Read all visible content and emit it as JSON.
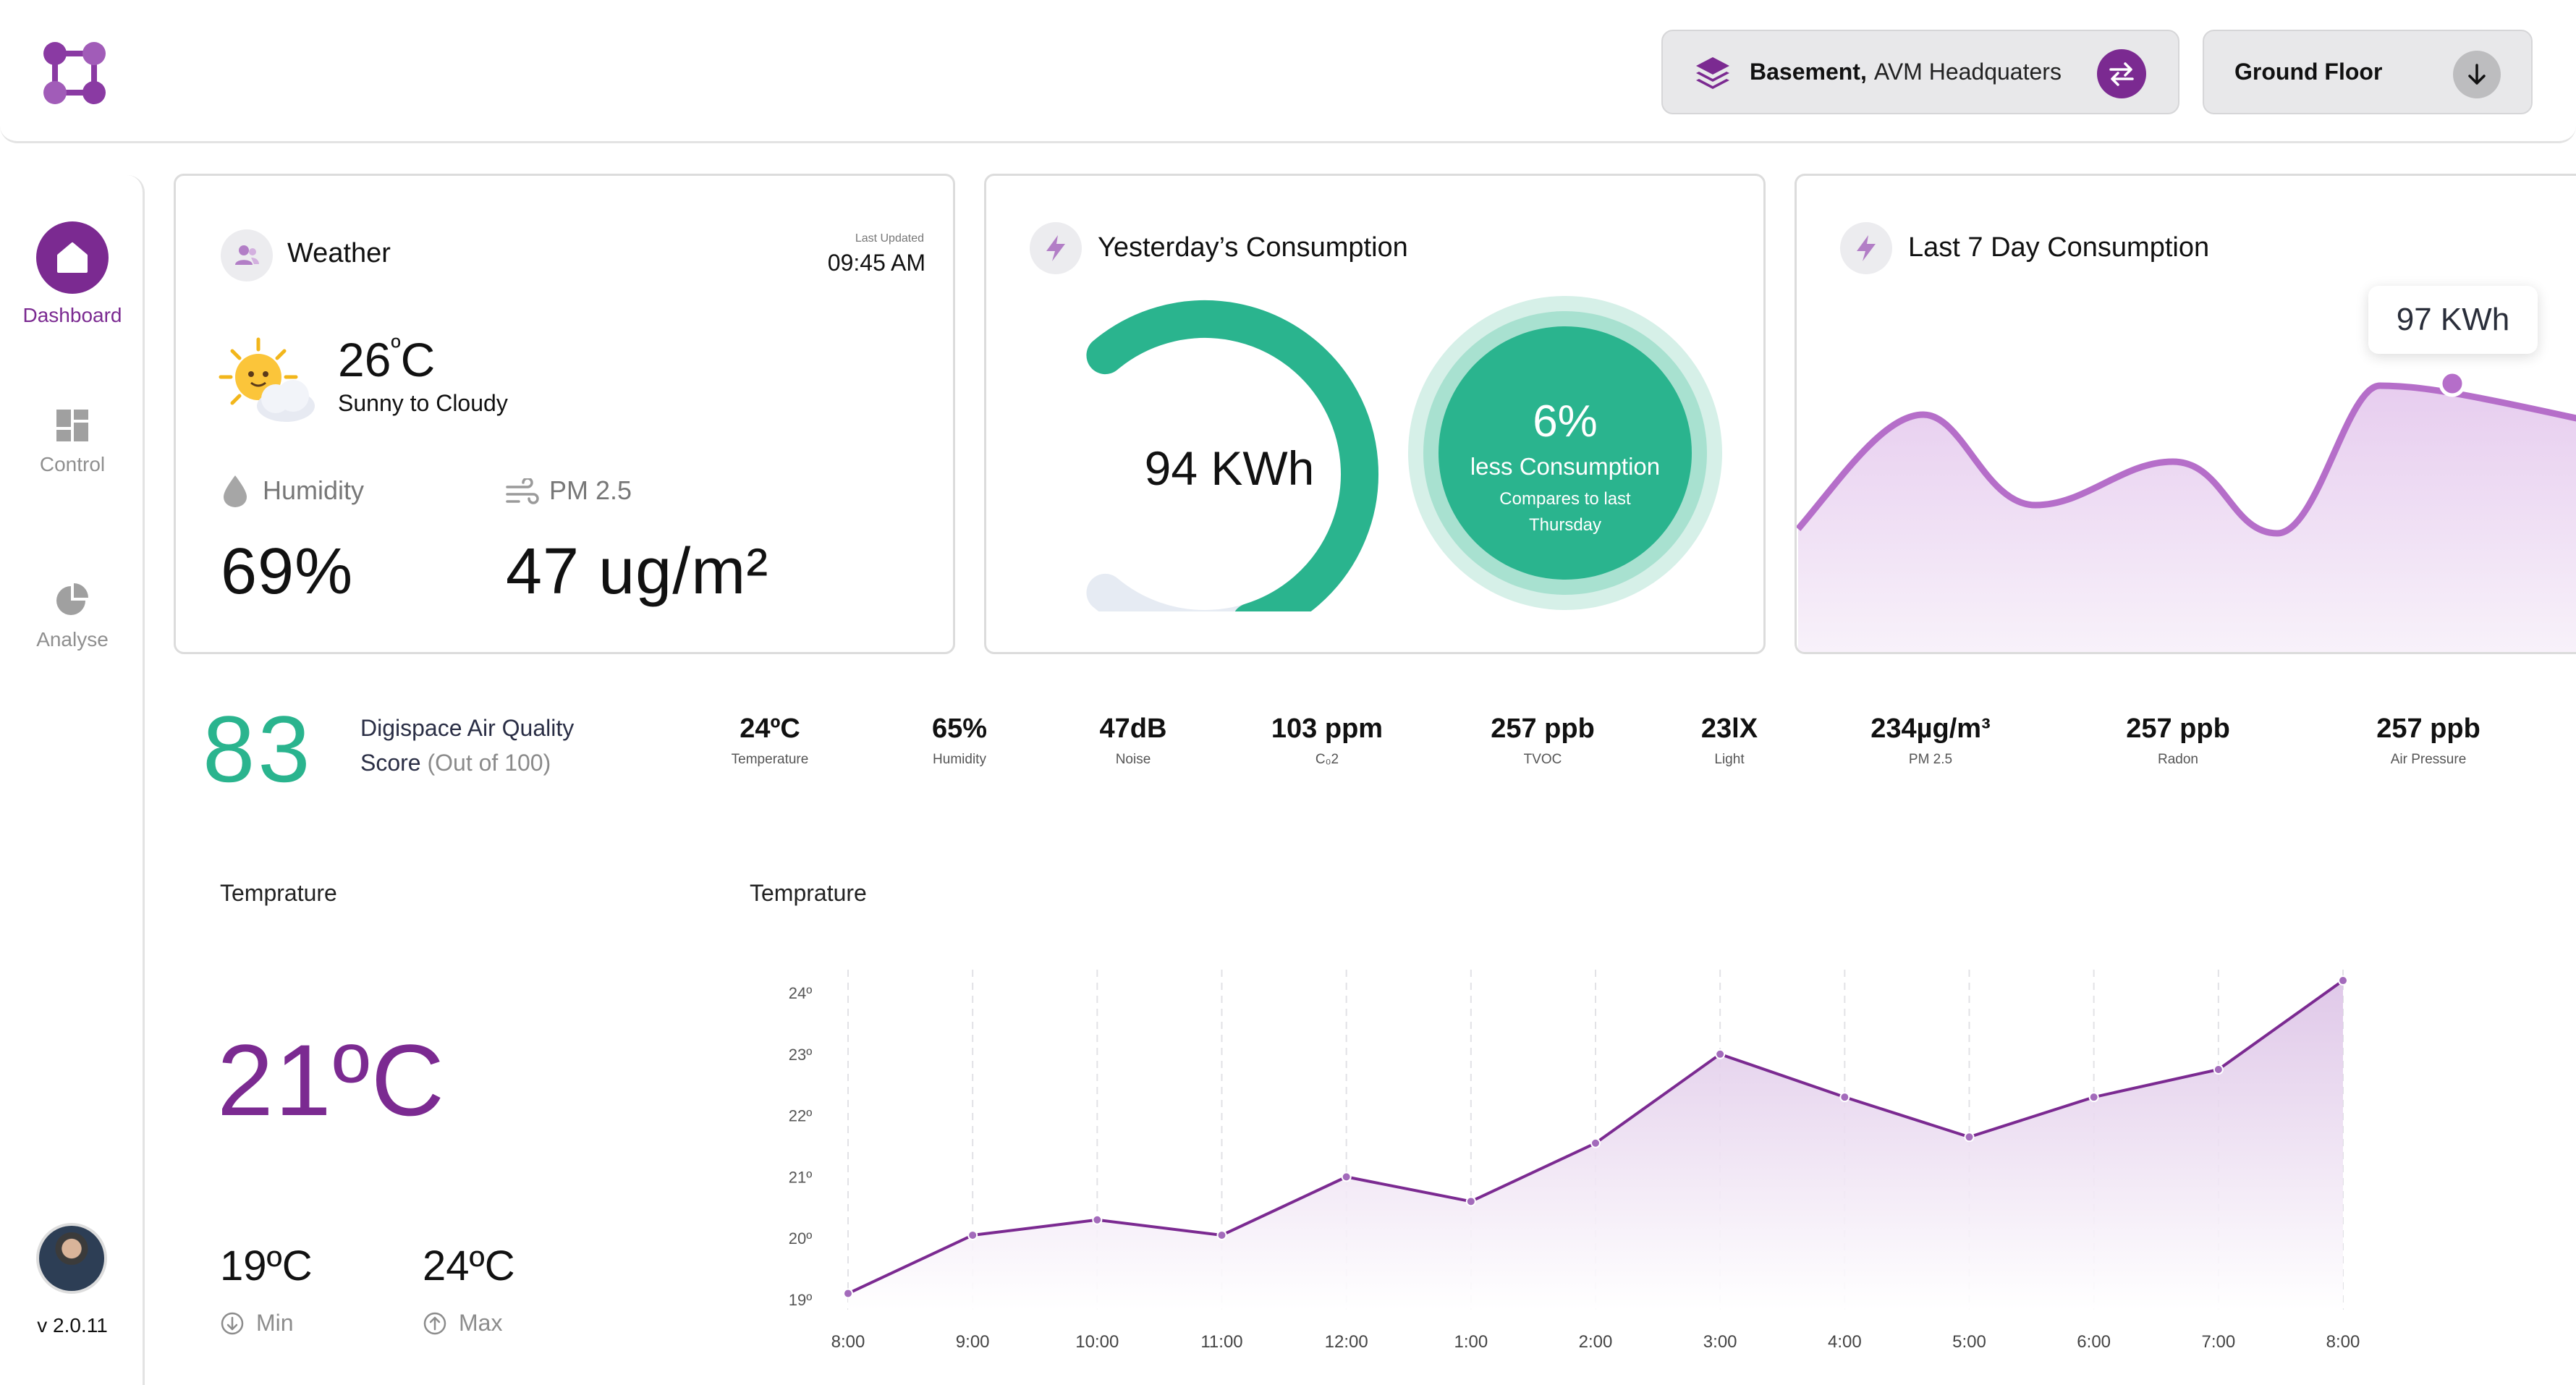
{
  "header": {
    "location_bold": "Basement,",
    "location_rest": "AVM Headquaters",
    "floor": "Ground Floor",
    "accent": "#7b2a91"
  },
  "sidebar": {
    "items": [
      {
        "label": "Dashboard",
        "icon": "home-icon",
        "active": true
      },
      {
        "label": "Control",
        "icon": "grid-icon",
        "active": false
      },
      {
        "label": "Analyse",
        "icon": "pie-chart-icon",
        "active": false
      }
    ],
    "version": "v 2.0.11"
  },
  "weather": {
    "title": "Weather",
    "last_updated_label": "Last Updated",
    "last_updated_time": "09:45 AM",
    "temperature": "26",
    "temperature_unit": "C",
    "condition": "Sunny to Cloudy",
    "humidity_label": "Humidity",
    "humidity_value": "69%",
    "pm_label": "PM 2.5",
    "pm_value": "47 ug/m²"
  },
  "yesterday": {
    "title": "Yesterday’s Consumption",
    "value": "94 KWh",
    "gauge_fraction": 0.78,
    "percent": "6%",
    "compare_main": "less Consumption",
    "compare_sub1": "Compares to last",
    "compare_sub2": "Thursday",
    "gauge_color": "#2ab48e",
    "track_color": "#e6ebf3"
  },
  "last7": {
    "title": "Last 7 Day Consumption",
    "highlight_value": "97 KWh"
  },
  "air_quality": {
    "score": "83",
    "label_line1": "Digispace Air Quality",
    "label_line2": "Score",
    "label_muted": "(Out of 100)",
    "metrics": [
      {
        "value": "24ºC",
        "label": "Temperature"
      },
      {
        "value": "65%",
        "label": "Humidity"
      },
      {
        "value": "47dB",
        "label": "Noise"
      },
      {
        "value": "103 ppm",
        "label": "C₀2"
      },
      {
        "value": "257 ppb",
        "label": "TVOC"
      },
      {
        "value": "23lX",
        "label": "Light"
      },
      {
        "value": "234µg/m³",
        "label": "PM 2.5"
      },
      {
        "value": "257 ppb",
        "label": "Radon"
      },
      {
        "value": "257 ppb",
        "label": "Air Pressure"
      }
    ]
  },
  "temperature_panel": {
    "title": "Temprature",
    "current": "21ºC",
    "min_value": "19ºC",
    "min_label": "Min",
    "max_value": "24ºC",
    "max_label": "Max"
  },
  "chart_data": {
    "type": "area",
    "title": "Temprature",
    "x": [
      "8:00",
      "9:00",
      "10:00",
      "11:00",
      "12:00",
      "1:00",
      "2:00",
      "3:00",
      "4:00",
      "5:00",
      "6:00",
      "7:00",
      "8:00"
    ],
    "values": [
      19.1,
      20.05,
      20.3,
      20.05,
      21.0,
      20.6,
      21.55,
      23.0,
      22.3,
      21.65,
      22.3,
      22.75,
      24.2
    ],
    "y_ticks": [
      "19º",
      "20º",
      "21º",
      "22º",
      "23º",
      "24º"
    ],
    "ylim": [
      19,
      24
    ],
    "grid": "vertical dashed",
    "color": "#7b2a91"
  }
}
